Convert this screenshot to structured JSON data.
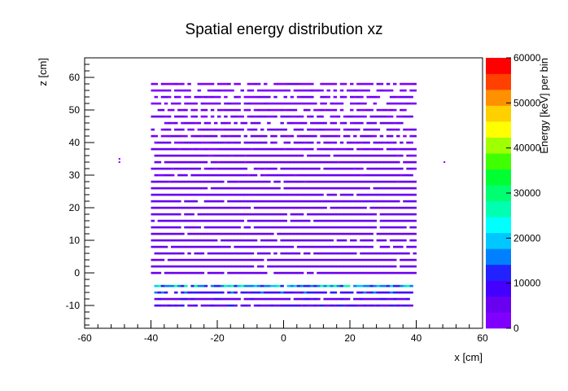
{
  "chart_data": {
    "type": "heatmap",
    "title": "Spatial energy distribution xz",
    "xlabel": "x [cm]",
    "ylabel": "z [cm]",
    "zlabel": "Energy [keV] per bin",
    "xlim": [
      -60,
      60
    ],
    "ylim": [
      -17,
      66
    ],
    "zlim": [
      0,
      60000
    ],
    "x_ticks": [
      -60,
      -40,
      -20,
      0,
      20,
      40,
      60
    ],
    "y_ticks": [
      -10,
      0,
      10,
      20,
      30,
      40,
      50,
      60
    ],
    "z_ticks": [
      0,
      10000,
      20000,
      30000,
      40000,
      50000,
      60000
    ],
    "grid": false,
    "colorbar_position": "right",
    "colors": [
      "#8000ff",
      "#6a00f0",
      "#4400ff",
      "#2222ff",
      "#0080ff",
      "#00c8ff",
      "#00ffff",
      "#00ffb0",
      "#00ff70",
      "#00ff30",
      "#40ff00",
      "#a0ff00",
      "#ffff00",
      "#ffd000",
      "#ff9000",
      "#ff4000",
      "#ff0000"
    ],
    "bands": [
      {
        "z": 58,
        "x": [
          -40,
          40
        ],
        "energy": 3000
      },
      {
        "z": 56,
        "x": [
          -40,
          40
        ],
        "energy": 3000
      },
      {
        "z": 54,
        "x": [
          -39,
          39
        ],
        "energy": 3500
      },
      {
        "z": 52,
        "x": [
          -40,
          40
        ],
        "energy": 3000
      },
      {
        "z": 50,
        "x": [
          -38,
          38
        ],
        "energy": 3500
      },
      {
        "z": 48,
        "x": [
          -40,
          40
        ],
        "energy": 3500
      },
      {
        "z": 46,
        "x": [
          -36,
          36
        ],
        "energy": 4000
      },
      {
        "z": 44,
        "x": [
          -40,
          40
        ],
        "energy": 4000
      },
      {
        "z": 42,
        "x": [
          -40,
          40
        ],
        "energy": 4000
      },
      {
        "z": 40,
        "x": [
          -39,
          39
        ],
        "energy": 4000
      },
      {
        "z": 38,
        "x": [
          -40,
          40
        ],
        "energy": 4000
      },
      {
        "z": 36,
        "x": [
          -40,
          40
        ],
        "energy": 4500
      },
      {
        "z": 34,
        "x": [
          -39,
          40
        ],
        "energy": 4500
      },
      {
        "z": 32,
        "x": [
          -40,
          40
        ],
        "energy": 4500
      },
      {
        "z": 30,
        "x": [
          -39,
          39
        ],
        "energy": 4500
      },
      {
        "z": 28,
        "x": [
          -40,
          40
        ],
        "energy": 4500
      },
      {
        "z": 26,
        "x": [
          -40,
          40
        ],
        "energy": 5000
      },
      {
        "z": 24,
        "x": [
          -40,
          40
        ],
        "energy": 5000
      },
      {
        "z": 22,
        "x": [
          -40,
          40
        ],
        "energy": 5000
      },
      {
        "z": 20,
        "x": [
          -40,
          40
        ],
        "energy": 5000
      },
      {
        "z": 18,
        "x": [
          -40,
          40
        ],
        "energy": 5000
      },
      {
        "z": 16,
        "x": [
          -40,
          40
        ],
        "energy": 5000
      },
      {
        "z": 14,
        "x": [
          -40,
          40
        ],
        "energy": 5000
      },
      {
        "z": 12,
        "x": [
          -40,
          40
        ],
        "energy": 5000
      },
      {
        "z": 10,
        "x": [
          -40,
          40
        ],
        "energy": 5000
      },
      {
        "z": 8,
        "x": [
          -40,
          40
        ],
        "energy": 5000
      },
      {
        "z": 6,
        "x": [
          -40,
          40
        ],
        "energy": 5000
      },
      {
        "z": 4,
        "x": [
          -40,
          40
        ],
        "energy": 5000
      },
      {
        "z": 2,
        "x": [
          -40,
          40
        ],
        "energy": 5500
      },
      {
        "z": 0,
        "x": [
          -40,
          40
        ],
        "energy": 5500
      },
      {
        "z": -4,
        "x": [
          -39,
          39
        ],
        "energy": 16000
      },
      {
        "z": -6,
        "x": [
          -39,
          39
        ],
        "energy": 9000
      },
      {
        "z": -8,
        "x": [
          -39,
          39
        ],
        "energy": 6000
      },
      {
        "z": -10,
        "x": [
          -39,
          39
        ],
        "energy": 7000
      }
    ],
    "isolated_points": [
      {
        "x": -49.5,
        "z": 35,
        "energy": 3000
      },
      {
        "x": -49.5,
        "z": 34,
        "energy": 3000
      },
      {
        "x": 48.5,
        "z": 34,
        "energy": 3000
      }
    ]
  }
}
